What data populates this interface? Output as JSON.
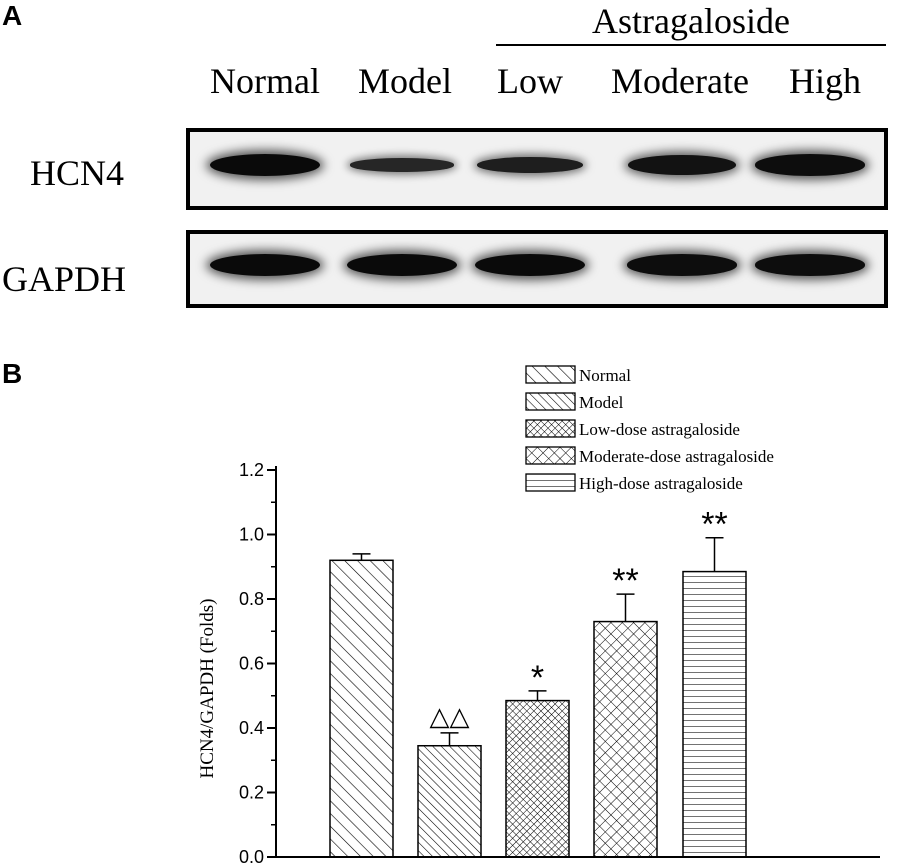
{
  "panel_a": {
    "letter": "A",
    "group_header": "Astragaloside",
    "lanes": [
      "Normal",
      "Model",
      "Low",
      "Moderate",
      "High"
    ],
    "rows": [
      {
        "label": "HCN4",
        "band_intensity": [
          1.0,
          0.45,
          0.6,
          0.85,
          0.95
        ]
      },
      {
        "label": "GAPDH",
        "band_intensity": [
          1.0,
          1.0,
          1.0,
          0.95,
          0.95
        ]
      }
    ]
  },
  "panel_b": {
    "letter": "B"
  },
  "chart_data": {
    "type": "bar",
    "title": "",
    "xlabel": "",
    "ylabel": "HCN4/GAPDH (Folds)",
    "ylim": [
      0,
      1.2
    ],
    "yticks": [
      "0.0",
      "0.2",
      "0.4",
      "0.6",
      "0.8",
      "1.0",
      "1.2"
    ],
    "categories": [
      "Normal",
      "Model",
      "Low-dose astragaloside",
      "Moderate-dose astragaloside",
      "High-dose astragaloside"
    ],
    "values": [
      0.92,
      0.345,
      0.485,
      0.73,
      0.885
    ],
    "errors": [
      0.02,
      0.04,
      0.03,
      0.085,
      0.105
    ],
    "annotations": [
      "",
      "△△",
      "*",
      "**",
      "**"
    ],
    "patterns": [
      "diagonal-sparse",
      "diagonal-dense",
      "crosshatch-dense",
      "crosshatch",
      "horizontal"
    ],
    "legend": {
      "position": "top-right",
      "entries": [
        "Normal",
        "Model",
        "Low-dose astragaloside",
        "Moderate-dose astragaloside",
        "High-dose astragaloside"
      ]
    },
    "grid": false
  }
}
